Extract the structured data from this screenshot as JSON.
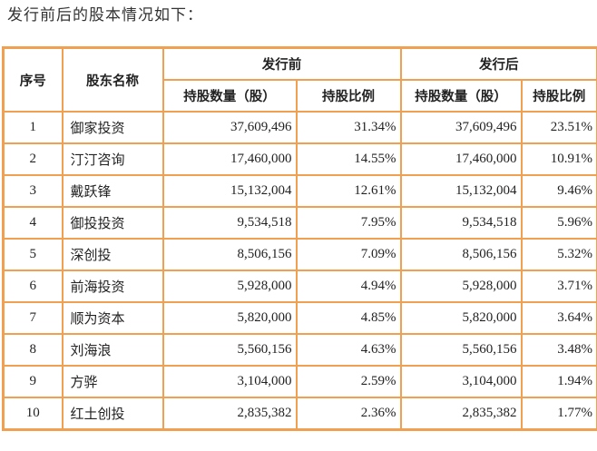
{
  "intro": "发行前后的股本情况如下：",
  "headers": {
    "seq": "序号",
    "name": "股东名称",
    "before": "发行前",
    "after": "发行后",
    "qty": "持股数量（股）",
    "ratio": "持股比例"
  },
  "rows": [
    [
      "1",
      "御家投资",
      "37,609,496",
      "31.34%",
      "37,609,496",
      "23.51%"
    ],
    [
      "2",
      "汀汀咨询",
      "17,460,000",
      "14.55%",
      "17,460,000",
      "10.91%"
    ],
    [
      "3",
      "戴跃锋",
      "15,132,004",
      "12.61%",
      "15,132,004",
      "9.46%"
    ],
    [
      "4",
      "御投投资",
      "9,534,518",
      "7.95%",
      "9,534,518",
      "5.96%"
    ],
    [
      "5",
      "深创投",
      "8,506,156",
      "7.09%",
      "8,506,156",
      "5.32%"
    ],
    [
      "6",
      "前海投资",
      "5,928,000",
      "4.94%",
      "5,928,000",
      "3.71%"
    ],
    [
      "7",
      "顺为资本",
      "5,820,000",
      "4.85%",
      "5,820,000",
      "3.64%"
    ],
    [
      "8",
      "刘海浪",
      "5,560,156",
      "4.63%",
      "5,560,156",
      "3.48%"
    ],
    [
      "9",
      "方骅",
      "3,104,000",
      "2.59%",
      "3,104,000",
      "1.94%"
    ],
    [
      "10",
      "红土创投",
      "2,835,382",
      "2.36%",
      "2,835,382",
      "1.77%"
    ]
  ],
  "colors": {
    "border": "#f0a050"
  }
}
